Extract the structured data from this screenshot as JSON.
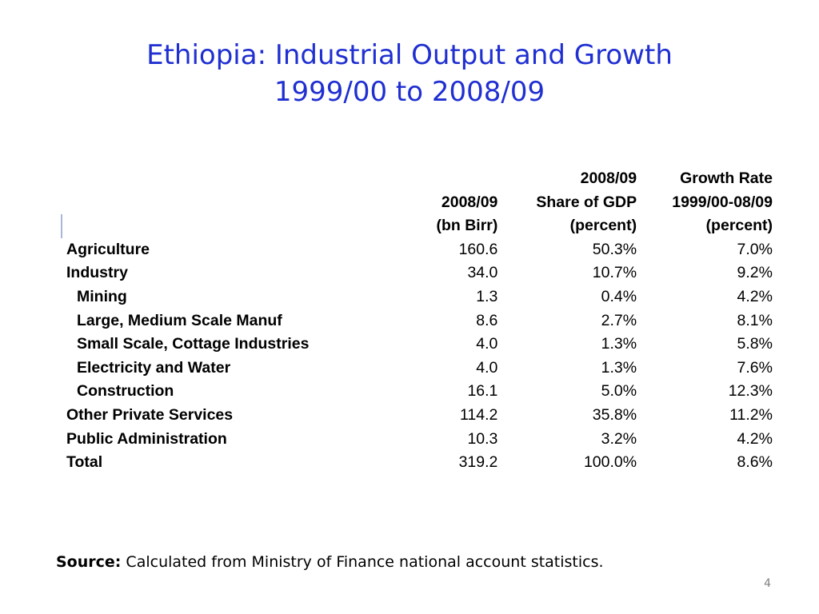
{
  "slide": {
    "title_line1": "Ethiopia: Industrial Output and Growth",
    "title_line2": "1999/00 to 2008/09",
    "page_number": "4",
    "source_label": "Source:",
    "source_text": " Calculated from Ministry of Finance national account statistics."
  },
  "table": {
    "header": {
      "row1": [
        "",
        "",
        "2008/09",
        "Growth Rate"
      ],
      "row2": [
        "",
        "2008/09",
        "Share of GDP",
        "1999/00-08/09"
      ],
      "row3": [
        "",
        "(bn Birr)",
        "(percent)",
        "(percent)"
      ]
    },
    "rows": [
      {
        "label": "Agriculture",
        "indent": false,
        "output": "160.6",
        "share": "50.3%",
        "growth": "7.0%"
      },
      {
        "label": "Industry",
        "indent": false,
        "output": "34.0",
        "share": "10.7%",
        "growth": "9.2%"
      },
      {
        "label": "Mining",
        "indent": true,
        "output": "1.3",
        "share": "0.4%",
        "growth": "4.2%"
      },
      {
        "label": "Large, Medium Scale Manuf",
        "indent": true,
        "output": "8.6",
        "share": "2.7%",
        "growth": "8.1%"
      },
      {
        "label": "Small Scale, Cottage Industries",
        "indent": true,
        "output": "4.0",
        "share": "1.3%",
        "growth": "5.8%"
      },
      {
        "label": "Electricity and Water",
        "indent": true,
        "output": "4.0",
        "share": "1.3%",
        "growth": "7.6%"
      },
      {
        "label": "Construction",
        "indent": true,
        "output": "16.1",
        "share": "5.0%",
        "growth": "12.3%"
      },
      {
        "label": "Other Private Services",
        "indent": false,
        "output": "114.2",
        "share": "35.8%",
        "growth": "11.2%"
      },
      {
        "label": "Public Administration",
        "indent": false,
        "output": "10.3",
        "share": "3.2%",
        "growth": "4.2%"
      },
      {
        "label": "Total",
        "indent": false,
        "output": "319.2",
        "share": "100.0%",
        "growth": "8.6%"
      }
    ]
  },
  "colors": {
    "title": "#1f2fd1",
    "page_number": "#808080"
  }
}
